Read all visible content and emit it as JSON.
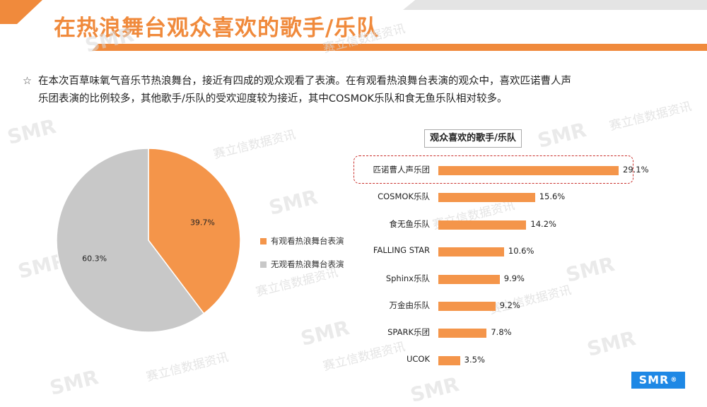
{
  "page": {
    "title": "在热浪舞台观众喜欢的歌手/乐队"
  },
  "intro": {
    "star": "☆",
    "line1": "在本次百草味氧气音乐节热浪舞台，接近有四成的观众观看了表演。在有观看热浪舞台表演的观众中，喜欢匹诺曹人声",
    "line2": "乐团表演的比例较多，其他歌手/乐队的受欢迎度较为接近，其中COSMOK乐队和食无鱼乐队相对较多。"
  },
  "watermark": {
    "logo": "SMR",
    "text": "赛立信数据资讯",
    "mark": "®"
  },
  "colors": {
    "accent": "#F08A3C",
    "bar": "#F4954A",
    "grey": "#C8C8C8",
    "highlight": "#C9302C",
    "logo": "#1E88E5"
  },
  "chart_data": [
    {
      "type": "pie",
      "labels": [
        "有观看热浪舞台表演",
        "无观看热浪舞台表演"
      ],
      "values": [
        39.7,
        60.3
      ],
      "value_labels": [
        "39.7%",
        "60.3%"
      ],
      "colors": [
        "#F4954A",
        "#C8C8C8"
      ],
      "legend": "right"
    },
    {
      "type": "bar",
      "orientation": "horizontal",
      "title": "观众喜欢的歌手/乐队",
      "categories": [
        "匹诺曹人声乐团",
        "COSMOK乐队",
        "食无鱼乐队",
        "FALLING STAR",
        "Sphinx乐队",
        "万金由乐队",
        "SPARK乐团",
        "UCOK"
      ],
      "values": [
        29.1,
        15.6,
        14.2,
        10.6,
        9.9,
        9.2,
        7.8,
        3.5
      ],
      "value_labels": [
        "29.1%",
        "15.6%",
        "14.2%",
        "10.6%",
        "9.9%",
        "9.2%",
        "7.8%",
        "3.5%"
      ],
      "highlighted": "匹诺曹人声乐团"
    }
  ]
}
